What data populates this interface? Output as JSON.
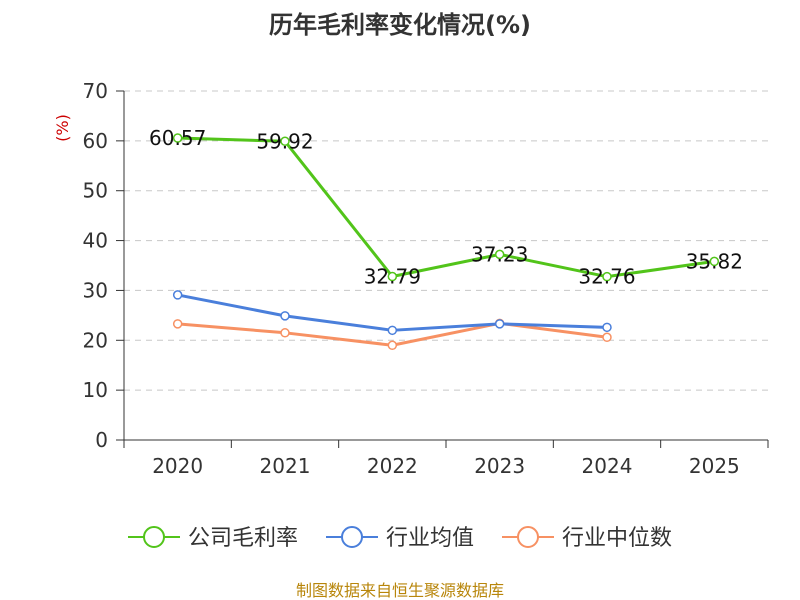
{
  "chart_data": {
    "type": "line",
    "title": "历年毛利率变化情况(%)",
    "ylabel": "(%)",
    "xlabel": "",
    "categories": [
      "2020",
      "2021",
      "2022",
      "2023",
      "2024",
      "2025"
    ],
    "ylim": [
      0,
      70
    ],
    "yticks": [
      0,
      10,
      20,
      30,
      40,
      50,
      60,
      70
    ],
    "grid": true,
    "legend_position": "bottom",
    "series": [
      {
        "name": "公司毛利率",
        "color": "#52c41a",
        "values": [
          60.57,
          59.92,
          32.79,
          37.23,
          32.76,
          35.82
        ],
        "labels": [
          "60.57",
          "59.92",
          "32.79",
          "37.23",
          "32.76",
          "35.82"
        ]
      },
      {
        "name": "行业均值",
        "color": "#4a7fdb",
        "values": [
          29.1,
          24.9,
          22.0,
          23.3,
          22.6,
          null
        ]
      },
      {
        "name": "行业中位数",
        "color": "#f79163",
        "values": [
          23.3,
          21.5,
          19.0,
          23.4,
          20.6,
          null
        ]
      }
    ],
    "source": "制图数据来自恒生聚源数据库"
  }
}
